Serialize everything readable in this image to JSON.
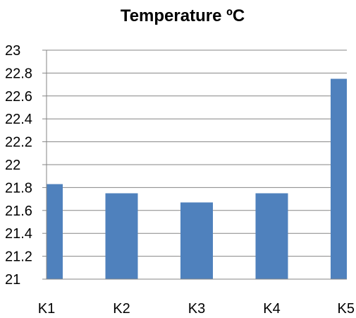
{
  "chart_data": {
    "type": "bar",
    "title": "Temperature ºC",
    "xlabel": "",
    "ylabel": "",
    "categories": [
      "K1",
      "K2",
      "K3",
      "K4",
      "K5"
    ],
    "series": [
      {
        "values": [
          21.83,
          21.75,
          21.67,
          21.75,
          22.75
        ]
      }
    ],
    "ylim": [
      21,
      23
    ],
    "yticks": [
      "21",
      "21.2",
      "21.4",
      "21.6",
      "21.8",
      "22",
      "22.2",
      "22.4",
      "22.6",
      "22.8",
      "23"
    ],
    "grid": true,
    "legend": "none",
    "bar_color": "#4f81bd"
  }
}
